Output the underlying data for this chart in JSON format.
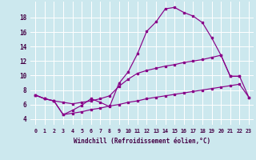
{
  "xlabel": "Windchill (Refroidissement éolien,°C)",
  "bg_color": "#cce8ee",
  "grid_color": "#ffffff",
  "line_color": "#880088",
  "x_ticks": [
    0,
    1,
    2,
    3,
    4,
    5,
    6,
    7,
    8,
    9,
    10,
    11,
    12,
    13,
    14,
    15,
    16,
    17,
    18,
    19,
    20,
    21,
    22,
    23
  ],
  "y_ticks": [
    4,
    6,
    8,
    10,
    12,
    14,
    16,
    18
  ],
  "ylim": [
    3.2,
    20.2
  ],
  "xlim": [
    -0.5,
    23.5
  ],
  "series1_x": [
    0,
    1,
    2,
    3,
    4,
    5,
    6,
    7,
    8,
    9,
    10,
    11,
    12,
    13,
    14,
    15,
    16,
    17,
    18,
    19,
    20,
    21,
    22
  ],
  "series1_y": [
    7.3,
    6.8,
    6.5,
    4.6,
    5.2,
    5.9,
    6.8,
    6.3,
    5.7,
    8.9,
    10.5,
    13.0,
    16.1,
    17.4,
    19.2,
    19.4,
    18.7,
    18.2,
    17.3,
    15.2,
    12.8,
    9.9,
    9.9
  ],
  "series2_x": [
    0,
    1,
    2,
    3,
    4,
    5,
    6,
    7,
    8,
    9,
    10,
    11,
    12,
    13,
    14,
    15,
    16,
    17,
    18,
    19,
    20,
    21,
    22,
    23
  ],
  "series2_y": [
    7.3,
    6.8,
    6.5,
    6.3,
    6.1,
    6.3,
    6.5,
    6.8,
    7.2,
    8.5,
    9.5,
    10.3,
    10.7,
    11.0,
    11.3,
    11.5,
    11.8,
    12.0,
    12.2,
    12.5,
    12.8,
    9.9,
    9.9,
    7.0
  ],
  "series3_x": [
    0,
    1,
    2,
    3,
    4,
    5,
    6,
    7,
    8,
    9,
    10,
    11,
    12,
    13,
    14,
    15,
    16,
    17,
    18,
    19,
    20,
    21,
    22,
    23
  ],
  "series3_y": [
    7.3,
    6.8,
    6.5,
    4.6,
    4.8,
    5.0,
    5.3,
    5.5,
    5.8,
    6.0,
    6.3,
    6.5,
    6.8,
    7.0,
    7.2,
    7.4,
    7.6,
    7.8,
    8.0,
    8.2,
    8.4,
    8.6,
    8.8,
    7.0
  ]
}
